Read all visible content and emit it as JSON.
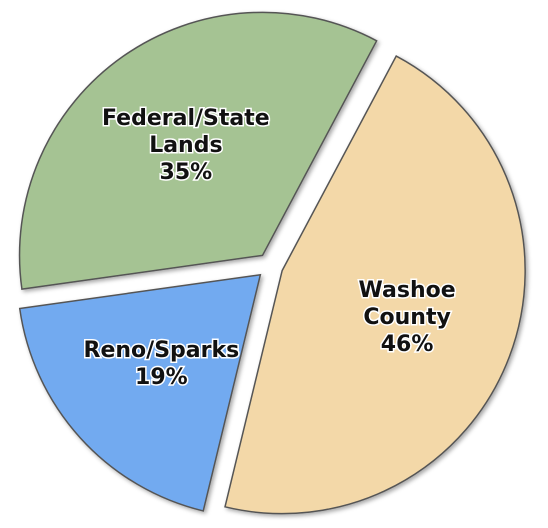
{
  "chart_data": {
    "type": "pie",
    "categories": [
      "Washoe County",
      "Reno/Sparks",
      "Federal/State Lands"
    ],
    "values": [
      46,
      19,
      35
    ],
    "value_labels": [
      "46%",
      "19%",
      "35%"
    ],
    "colors": [
      "#f3d8a8",
      "#72aaf0",
      "#a5c393"
    ]
  }
}
